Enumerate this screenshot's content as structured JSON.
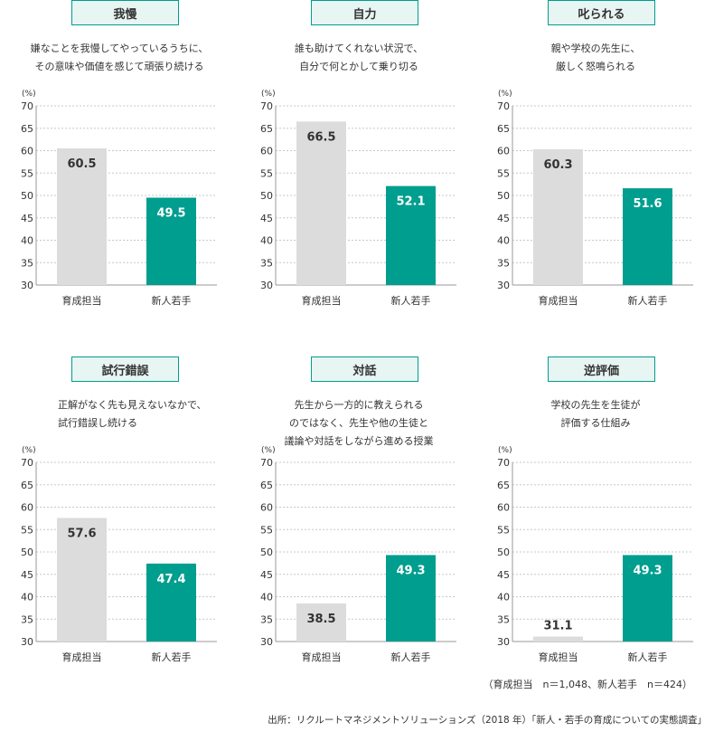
{
  "colors": {
    "teacher_bar": "#dcdcdc",
    "newcomer_bar": "#009e8e",
    "tag_border": "#009e8e",
    "tag_fill": "#e7f5f3",
    "grid": "#c8c8c8"
  },
  "axis": {
    "unit": "(%)",
    "ticks": [
      "70",
      "65",
      "60",
      "55",
      "50",
      "45",
      "40",
      "35",
      "30"
    ]
  },
  "chart_data": [
    {
      "type": "bar",
      "title": "我慢",
      "description": [
        "嫌なことを我慢してやっているうちに、",
        "その意味や価値を感じて頑張り続ける"
      ],
      "categories": [
        "育成担当",
        "新人若手"
      ],
      "values": [
        60.5,
        49.5
      ],
      "value_labels": [
        "60.5",
        "49.5"
      ],
      "ylabel": "(%)",
      "ylim": [
        30,
        70
      ],
      "grid": true
    },
    {
      "type": "bar",
      "title": "自力",
      "description": [
        "誰も助けてくれない状況で、",
        "自分で何とかして乗り切る"
      ],
      "categories": [
        "育成担当",
        "新人若手"
      ],
      "values": [
        66.5,
        52.1
      ],
      "value_labels": [
        "66.5",
        "52.1"
      ],
      "ylabel": "(%)",
      "ylim": [
        30,
        70
      ],
      "grid": true
    },
    {
      "type": "bar",
      "title": "叱られる",
      "description": [
        "親や学校の先生に、",
        "厳しく怒鳴られる"
      ],
      "categories": [
        "育成担当",
        "新人若手"
      ],
      "values": [
        60.3,
        51.6
      ],
      "value_labels": [
        "60.3",
        "51.6"
      ],
      "ylabel": "(%)",
      "ylim": [
        30,
        70
      ],
      "grid": true
    },
    {
      "type": "bar",
      "title": "試行錯誤",
      "description": [
        "正解がなく先も見えないなかで、",
        "試行錯誤し続ける"
      ],
      "categories": [
        "育成担当",
        "新人若手"
      ],
      "values": [
        57.6,
        47.4
      ],
      "value_labels": [
        "57.6",
        "47.4"
      ],
      "ylabel": "(%)",
      "ylim": [
        30,
        70
      ],
      "grid": true
    },
    {
      "type": "bar",
      "title": "対話",
      "description": [
        "先生から一方的に教えられる",
        "のではなく、先生や他の生徒と",
        "議論や対話をしながら進める授業"
      ],
      "categories": [
        "育成担当",
        "新人若手"
      ],
      "values": [
        38.5,
        49.3
      ],
      "value_labels": [
        "38.5",
        "49.3"
      ],
      "ylabel": "(%)",
      "ylim": [
        30,
        70
      ],
      "grid": true
    },
    {
      "type": "bar",
      "title": "逆評価",
      "description": [
        "学校の先生を生徒が",
        "評価する仕組み"
      ],
      "categories": [
        "育成担当",
        "新人若手"
      ],
      "values": [
        31.1,
        49.3
      ],
      "value_labels": [
        "31.1",
        "49.3"
      ],
      "ylabel": "(%)",
      "ylim": [
        30,
        70
      ],
      "grid": true
    }
  ],
  "footnote": "（育成担当　n＝1,048、新人若手　n＝424）",
  "source": "出所：リクルートマネジメントソリューションズ（2018 年）「新人・若手の育成についての実態調査」"
}
